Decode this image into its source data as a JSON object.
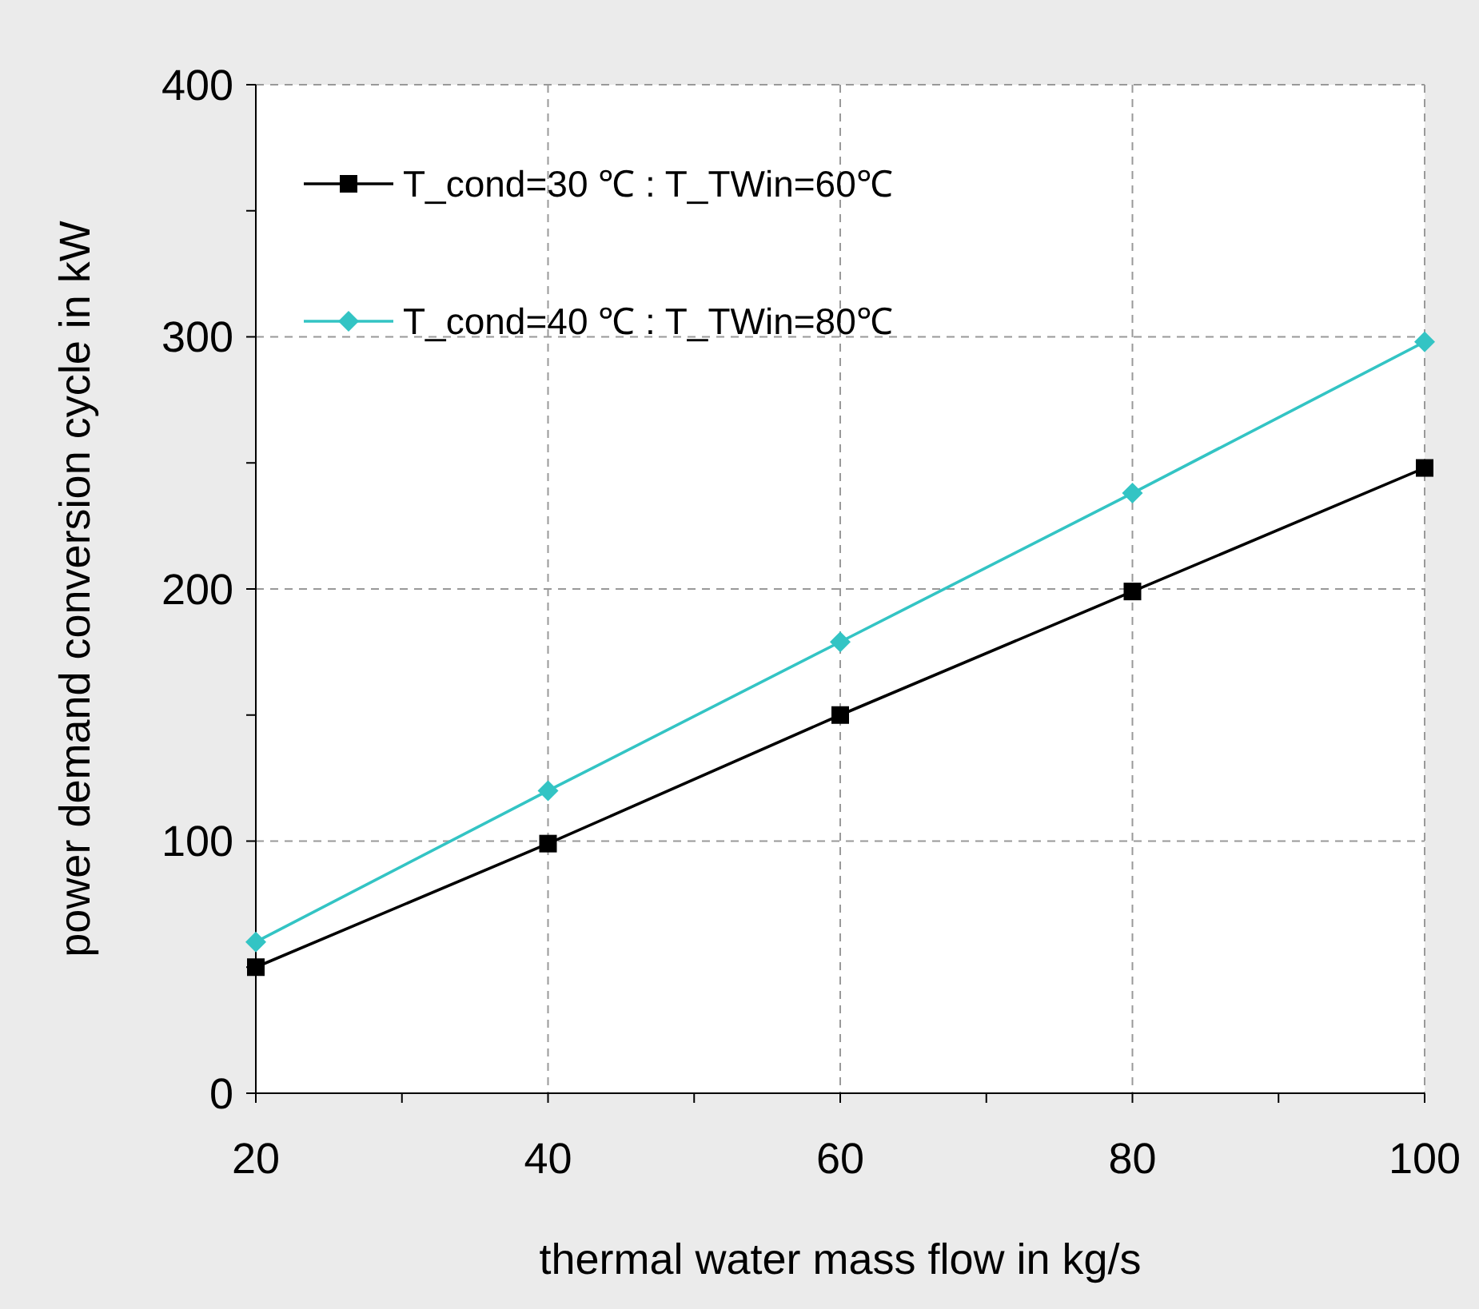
{
  "chart_data": {
    "type": "line",
    "xlabel": "thermal water mass flow in kg/s",
    "ylabel": "power demand conversion cycle in kW",
    "x": [
      20,
      40,
      60,
      80,
      100
    ],
    "series": [
      {
        "name": "T_cond=30 ℃ : T_TWin=60℃",
        "color": "#000000",
        "marker": "square",
        "values": [
          50,
          99,
          150,
          199,
          248
        ]
      },
      {
        "name": "T_cond=40 ℃ : T_TWin=80℃",
        "color": "#33c4c4",
        "marker": "diamond",
        "values": [
          60,
          120,
          179,
          238,
          298
        ]
      }
    ],
    "xlim": [
      20,
      100
    ],
    "xticks": [
      20,
      {
        "value": 30,
        "label": null
      },
      40,
      {
        "value": 50,
        "label": null
      },
      60,
      {
        "value": 70,
        "label": null
      },
      80,
      {
        "value": 90,
        "label": null
      },
      100
    ],
    "ylim": [
      0,
      400
    ],
    "yticks": [
      0,
      {
        "value": 50,
        "label": null
      },
      100,
      {
        "value": 150,
        "label": null
      },
      200,
      {
        "value": 250,
        "label": null
      },
      300,
      {
        "value": 350,
        "label": null
      },
      400
    ],
    "grid": true,
    "legend": "top left",
    "line_style": "solid"
  }
}
